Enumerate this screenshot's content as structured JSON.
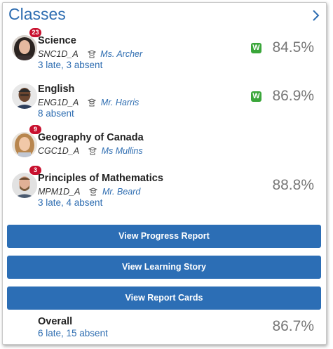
{
  "header": {
    "title": "Classes",
    "nav_icon": "chevron-right-icon"
  },
  "classes": [
    {
      "name": "Science",
      "code": "SNC1D_A",
      "teacher": "Ms. Archer",
      "attendance": "3 late, 3 absent",
      "badge": "23",
      "w_label": "W",
      "grade": "84.5%"
    },
    {
      "name": "English",
      "code": "ENG1D_A",
      "teacher": "Mr. Harris",
      "attendance": "8 absent",
      "badge": "",
      "w_label": "W",
      "grade": "86.9%"
    },
    {
      "name": "Geography of Canada",
      "code": "CGC1D_A",
      "teacher": "Ms Mullins",
      "attendance": "",
      "badge": "9",
      "w_label": "",
      "grade": ""
    },
    {
      "name": "Principles of Mathematics",
      "code": "MPM1D_A",
      "teacher": "Mr. Beard",
      "attendance": "3 late, 4 absent",
      "badge": "3",
      "w_label": "",
      "grade": "88.8%"
    }
  ],
  "buttons": {
    "progress": "View Progress Report",
    "story": "View Learning Story",
    "report_cards": "View Report Cards"
  },
  "overall": {
    "label": "Overall",
    "attendance": "6 late, 15 absent",
    "grade": "86.7%"
  },
  "colors": {
    "accent": "#2c6eb5",
    "badge": "#c8102e",
    "w_badge": "#3aa63a"
  }
}
